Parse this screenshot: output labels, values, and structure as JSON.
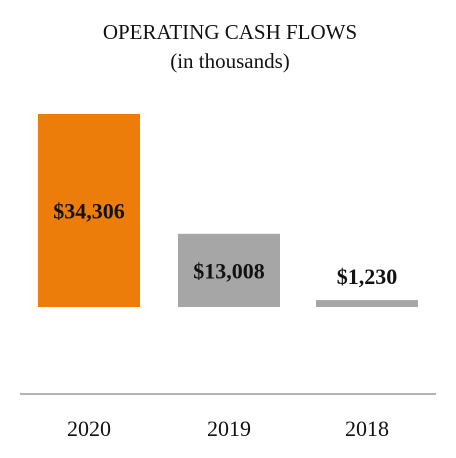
{
  "chart_data": {
    "type": "bar",
    "title": "OPERATING CASH FLOWS",
    "subtitle": "(in thousands)",
    "categories": [
      "2020",
      "2019",
      "2018"
    ],
    "values": [
      34306,
      13008,
      1230
    ],
    "value_labels": [
      "$34,306",
      "$13,008",
      "$1,230"
    ],
    "colors": [
      "#ED7D0A",
      "#A5A6A5",
      "#A5A6A5"
    ],
    "xlabel": "",
    "ylabel": "",
    "grid": false,
    "legend": "none"
  }
}
